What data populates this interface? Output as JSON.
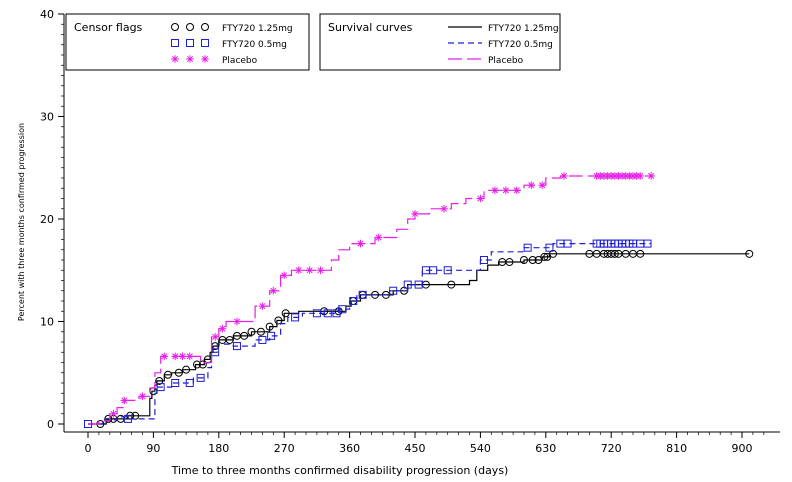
{
  "chart_data": {
    "type": "line",
    "xlabel": "Time to three months confirmed disability progression (days)",
    "ylabel": "Percent with three months confirmed progression",
    "xlim": [
      0,
      945
    ],
    "ylim": [
      0,
      40
    ],
    "x_ticks": [
      "0",
      "90",
      "180",
      "270",
      "360",
      "450",
      "540",
      "630",
      "720",
      "810",
      "900"
    ],
    "y_ticks": [
      "0",
      "10",
      "20",
      "30",
      "40"
    ],
    "x_tick_values": [
      0,
      90,
      180,
      270,
      360,
      450,
      540,
      630,
      720,
      810,
      900
    ],
    "y_tick_values": [
      0,
      10,
      20,
      30,
      40
    ],
    "grid": false,
    "legends": {
      "censor": {
        "title": "Censor flags",
        "entries": [
          {
            "label": "FTY720 1.25mg",
            "marker": "circle",
            "color": "#000000"
          },
          {
            "label": "FTY720 0.5mg",
            "marker": "square",
            "color": "#1f1fd6"
          },
          {
            "label": "Placebo",
            "marker": "star",
            "color": "#e61ee6"
          }
        ]
      },
      "survival": {
        "title": "Survival curves",
        "entries": [
          {
            "label": "FTY720 1.25mg",
            "dash": "solid",
            "color": "#000000"
          },
          {
            "label": "FTY720 0.5mg",
            "dash": "dashed",
            "color": "#1f1fd6"
          },
          {
            "label": "Placebo",
            "dash": "longdash",
            "color": "#e61ee6"
          }
        ]
      }
    },
    "series": [
      {
        "name": "FTY720 1.25mg",
        "color": "#000000",
        "dash": "solid",
        "marker": "circle",
        "points": [
          [
            0,
            0
          ],
          [
            25,
            0
          ],
          [
            25,
            0.5
          ],
          [
            55,
            0.5
          ],
          [
            55,
            0.8
          ],
          [
            85,
            0.8
          ],
          [
            85,
            2.5
          ],
          [
            88,
            2.5
          ],
          [
            88,
            3.2
          ],
          [
            92,
            3.2
          ],
          [
            92,
            3.8
          ],
          [
            95,
            3.8
          ],
          [
            95,
            4.2
          ],
          [
            105,
            4.2
          ],
          [
            105,
            4.8
          ],
          [
            115,
            4.8
          ],
          [
            115,
            5.0
          ],
          [
            130,
            5.0
          ],
          [
            130,
            5.3
          ],
          [
            148,
            5.3
          ],
          [
            148,
            5.8
          ],
          [
            160,
            5.8
          ],
          [
            160,
            6.3
          ],
          [
            168,
            6.3
          ],
          [
            168,
            7.0
          ],
          [
            172,
            7.0
          ],
          [
            172,
            7.6
          ],
          [
            180,
            7.6
          ],
          [
            180,
            8.2
          ],
          [
            200,
            8.2
          ],
          [
            200,
            8.6
          ],
          [
            215,
            8.6
          ],
          [
            225,
            8.6
          ],
          [
            225,
            9.0
          ],
          [
            250,
            9.0
          ],
          [
            250,
            9.5
          ],
          [
            260,
            9.5
          ],
          [
            260,
            10.1
          ],
          [
            270,
            10.1
          ],
          [
            270,
            10.8
          ],
          [
            290,
            10.8
          ],
          [
            290,
            11.0
          ],
          [
            355,
            11.0
          ],
          [
            355,
            11.5
          ],
          [
            362,
            11.5
          ],
          [
            362,
            12.0
          ],
          [
            375,
            12.0
          ],
          [
            375,
            12.6
          ],
          [
            420,
            12.6
          ],
          [
            420,
            13.0
          ],
          [
            440,
            13.0
          ],
          [
            440,
            13.6
          ],
          [
            525,
            13.6
          ],
          [
            525,
            14.0
          ],
          [
            535,
            14.0
          ],
          [
            535,
            15.0
          ],
          [
            550,
            15.0
          ],
          [
            550,
            15.5
          ],
          [
            565,
            15.5
          ],
          [
            565,
            15.8
          ],
          [
            600,
            15.8
          ],
          [
            600,
            16.0
          ],
          [
            625,
            16.0
          ],
          [
            625,
            16.3
          ],
          [
            635,
            16.3
          ],
          [
            635,
            16.6
          ],
          [
            910,
            16.6
          ]
        ],
        "censor_x": [
          17,
          28,
          35,
          45,
          58,
          65,
          90,
          98,
          110,
          125,
          135,
          150,
          158,
          165,
          175,
          185,
          195,
          205,
          215,
          225,
          238,
          250,
          262,
          272,
          325,
          345,
          365,
          378,
          395,
          410,
          435,
          465,
          500,
          570,
          580,
          600,
          612,
          620,
          628,
          632,
          640,
          690,
          700,
          710,
          715,
          720,
          725,
          730,
          740,
          750,
          760,
          910
        ]
      },
      {
        "name": "FTY720 0.5mg",
        "color": "#1f1fd6",
        "dash": "dashed",
        "marker": "square",
        "points": [
          [
            0,
            0
          ],
          [
            20,
            0
          ],
          [
            20,
            0.4
          ],
          [
            40,
            0.4
          ],
          [
            40,
            0.7
          ],
          [
            55,
            0.7
          ],
          [
            55,
            0.5
          ],
          [
            92,
            0.5
          ],
          [
            92,
            3.0
          ],
          [
            95,
            3.0
          ],
          [
            95,
            3.6
          ],
          [
            115,
            3.6
          ],
          [
            115,
            4.0
          ],
          [
            145,
            4.0
          ],
          [
            145,
            4.5
          ],
          [
            165,
            4.5
          ],
          [
            165,
            5.5
          ],
          [
            170,
            5.5
          ],
          [
            170,
            7.0
          ],
          [
            178,
            7.0
          ],
          [
            178,
            7.8
          ],
          [
            200,
            7.8
          ],
          [
            200,
            7.6
          ],
          [
            230,
            7.6
          ],
          [
            230,
            8.2
          ],
          [
            250,
            8.2
          ],
          [
            250,
            8.6
          ],
          [
            265,
            8.6
          ],
          [
            265,
            9.8
          ],
          [
            275,
            9.8
          ],
          [
            275,
            10.4
          ],
          [
            295,
            10.4
          ],
          [
            295,
            10.8
          ],
          [
            345,
            10.8
          ],
          [
            345,
            11.2
          ],
          [
            360,
            11.2
          ],
          [
            360,
            12.0
          ],
          [
            370,
            12.0
          ],
          [
            370,
            12.6
          ],
          [
            415,
            12.6
          ],
          [
            415,
            13.0
          ],
          [
            440,
            13.0
          ],
          [
            440,
            13.6
          ],
          [
            460,
            13.6
          ],
          [
            460,
            15.0
          ],
          [
            540,
            15.0
          ],
          [
            540,
            16.0
          ],
          [
            555,
            16.0
          ],
          [
            555,
            16.8
          ],
          [
            600,
            16.8
          ],
          [
            600,
            17.2
          ],
          [
            640,
            17.2
          ],
          [
            640,
            17.6
          ],
          [
            775,
            17.6
          ]
        ],
        "censor_x": [
          0,
          55,
          100,
          120,
          140,
          155,
          175,
          205,
          240,
          252,
          285,
          315,
          330,
          342,
          350,
          365,
          378,
          420,
          440,
          455,
          465,
          475,
          495,
          545,
          605,
          635,
          650,
          660,
          700,
          705,
          710,
          715,
          720,
          725,
          730,
          735,
          740,
          745,
          750,
          760,
          770
        ]
      },
      {
        "name": "Placebo",
        "color": "#e61ee6",
        "dash": "longdash",
        "marker": "star",
        "points": [
          [
            0,
            0
          ],
          [
            15,
            0
          ],
          [
            15,
            0.3
          ],
          [
            30,
            0.3
          ],
          [
            30,
            1.0
          ],
          [
            40,
            1.0
          ],
          [
            40,
            1.6
          ],
          [
            50,
            1.6
          ],
          [
            50,
            2.3
          ],
          [
            70,
            2.3
          ],
          [
            70,
            2.7
          ],
          [
            85,
            2.7
          ],
          [
            85,
            3.5
          ],
          [
            92,
            3.5
          ],
          [
            92,
            5.0
          ],
          [
            100,
            5.0
          ],
          [
            100,
            6.6
          ],
          [
            155,
            6.6
          ],
          [
            155,
            6.0
          ],
          [
            170,
            6.0
          ],
          [
            170,
            8.5
          ],
          [
            180,
            8.5
          ],
          [
            180,
            9.3
          ],
          [
            190,
            9.3
          ],
          [
            190,
            10.0
          ],
          [
            230,
            10.0
          ],
          [
            230,
            11.5
          ],
          [
            250,
            11.5
          ],
          [
            250,
            13.0
          ],
          [
            265,
            13.0
          ],
          [
            265,
            14.5
          ],
          [
            280,
            14.5
          ],
          [
            280,
            15.0
          ],
          [
            335,
            15.0
          ],
          [
            335,
            16.0
          ],
          [
            345,
            16.0
          ],
          [
            345,
            17.0
          ],
          [
            360,
            17.0
          ],
          [
            360,
            17.6
          ],
          [
            395,
            17.6
          ],
          [
            395,
            18.2
          ],
          [
            425,
            18.2
          ],
          [
            425,
            19.0
          ],
          [
            440,
            19.0
          ],
          [
            440,
            20.0
          ],
          [
            450,
            20.0
          ],
          [
            450,
            20.5
          ],
          [
            470,
            20.5
          ],
          [
            470,
            21.0
          ],
          [
            500,
            21.0
          ],
          [
            500,
            21.5
          ],
          [
            520,
            21.5
          ],
          [
            520,
            22.0
          ],
          [
            545,
            22.0
          ],
          [
            545,
            22.8
          ],
          [
            600,
            22.8
          ],
          [
            600,
            23.3
          ],
          [
            630,
            23.3
          ],
          [
            630,
            24.0
          ],
          [
            650,
            24.0
          ],
          [
            650,
            24.2
          ],
          [
            775,
            24.2
          ]
        ],
        "censor_x": [
          35,
          50,
          75,
          105,
          120,
          130,
          140,
          175,
          185,
          205,
          240,
          255,
          270,
          290,
          305,
          320,
          375,
          400,
          450,
          490,
          540,
          560,
          575,
          590,
          610,
          625,
          655,
          700,
          705,
          710,
          715,
          720,
          725,
          730,
          735,
          740,
          745,
          750,
          755,
          760,
          775
        ]
      }
    ]
  }
}
